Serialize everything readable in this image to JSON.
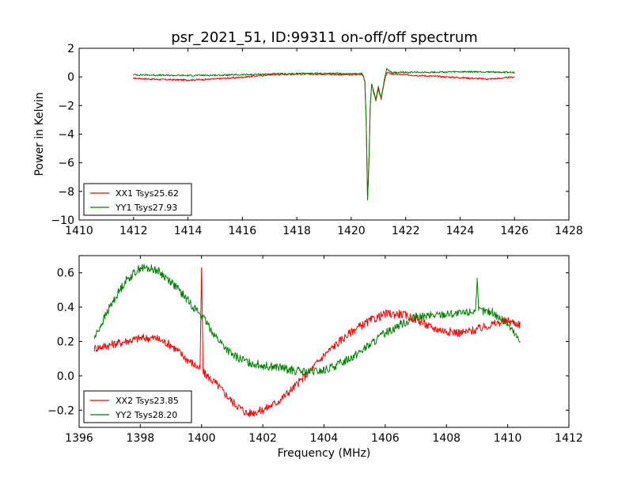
{
  "figure": {
    "title": "psr_2021_51, ID:99311 on-off/off spectrum"
  },
  "chart_data": [
    {
      "type": "line",
      "title": "psr_2021_51, ID:99311 on-off/off spectrum",
      "xlabel": "",
      "ylabel": "Power in Kelvin",
      "xlim": [
        1410,
        1428
      ],
      "ylim": [
        -10,
        2
      ],
      "xticks": [
        1410,
        1412,
        1414,
        1416,
        1418,
        1420,
        1422,
        1424,
        1426,
        1428
      ],
      "yticks": [
        -10,
        -8,
        -6,
        -4,
        -2,
        0,
        2
      ],
      "grid": false,
      "legend": "lower-left",
      "series": [
        {
          "name": "XX1 Tsys25.62",
          "color": "#ff0000",
          "x": [
            1412.0,
            1413.0,
            1414.0,
            1415.0,
            1416.0,
            1417.0,
            1418.0,
            1419.0,
            1420.0,
            1420.4,
            1420.5,
            1420.55,
            1420.6,
            1420.65,
            1420.7,
            1420.75,
            1420.8,
            1420.9,
            1421.0,
            1421.1,
            1421.2,
            1421.3,
            1421.5,
            1422.0,
            1423.0,
            1424.0,
            1425.0,
            1425.5,
            1426.0
          ],
          "y": [
            -0.1,
            -0.18,
            -0.22,
            -0.15,
            -0.02,
            0.15,
            0.2,
            0.2,
            0.15,
            0.2,
            -0.3,
            -3.0,
            -8.5,
            -6.0,
            -2.0,
            -0.6,
            -0.9,
            -1.7,
            -0.8,
            -1.6,
            -0.5,
            0.3,
            0.2,
            0.15,
            0.05,
            -0.05,
            -0.15,
            -0.1,
            0.0
          ]
        },
        {
          "name": "YY1 Tsys27.93",
          "color": "#008000",
          "x": [
            1412.0,
            1413.0,
            1414.0,
            1415.0,
            1416.0,
            1417.0,
            1418.0,
            1419.0,
            1420.0,
            1420.4,
            1420.5,
            1420.55,
            1420.6,
            1420.65,
            1420.7,
            1420.75,
            1420.8,
            1420.9,
            1421.0,
            1421.1,
            1421.2,
            1421.3,
            1421.5,
            1422.0,
            1423.0,
            1424.0,
            1425.0,
            1425.5,
            1426.0
          ],
          "y": [
            0.15,
            0.12,
            0.1,
            0.12,
            0.15,
            0.2,
            0.22,
            0.25,
            0.22,
            0.25,
            -0.3,
            -3.0,
            -8.6,
            -6.0,
            -2.0,
            -0.5,
            -0.8,
            -1.6,
            -0.7,
            -1.5,
            -0.4,
            0.6,
            0.3,
            0.32,
            0.33,
            0.35,
            0.35,
            0.33,
            0.3
          ]
        }
      ]
    },
    {
      "type": "line",
      "title": "",
      "xlabel": "Frequency (MHz)",
      "ylabel": "",
      "xlim": [
        1396,
        1412
      ],
      "ylim": [
        -0.3,
        0.7
      ],
      "xticks": [
        1396,
        1398,
        1400,
        1402,
        1404,
        1406,
        1408,
        1410,
        1412
      ],
      "yticks": [
        -0.2,
        0.0,
        0.2,
        0.4,
        0.6
      ],
      "grid": false,
      "legend": "lower-left",
      "series": [
        {
          "name": "XX2 Tsys23.85",
          "color": "#ff0000",
          "x": [
            1396.5,
            1397.0,
            1397.5,
            1398.0,
            1398.5,
            1399.0,
            1399.5,
            1399.95,
            1400.0,
            1400.05,
            1400.5,
            1401.0,
            1401.5,
            1402.0,
            1402.5,
            1403.0,
            1403.5,
            1404.0,
            1404.5,
            1405.0,
            1405.5,
            1406.0,
            1406.5,
            1407.0,
            1407.5,
            1408.0,
            1408.5,
            1409.0,
            1409.5,
            1410.0,
            1410.4
          ],
          "y": [
            0.16,
            0.18,
            0.2,
            0.22,
            0.22,
            0.18,
            0.1,
            0.04,
            0.63,
            0.02,
            -0.05,
            -0.15,
            -0.22,
            -0.2,
            -0.15,
            -0.07,
            0.02,
            0.12,
            0.2,
            0.27,
            0.32,
            0.36,
            0.36,
            0.33,
            0.28,
            0.26,
            0.25,
            0.27,
            0.3,
            0.32,
            0.3
          ]
        },
        {
          "name": "YY2 Tsys28.20",
          "color": "#008000",
          "x": [
            1396.5,
            1397.0,
            1397.5,
            1398.0,
            1398.5,
            1399.0,
            1399.5,
            1400.0,
            1400.5,
            1401.0,
            1401.5,
            1402.0,
            1402.5,
            1403.0,
            1403.5,
            1404.0,
            1404.5,
            1405.0,
            1405.5,
            1406.0,
            1406.5,
            1407.0,
            1407.5,
            1408.0,
            1408.5,
            1408.95,
            1409.0,
            1409.05,
            1409.5,
            1410.0,
            1410.4
          ],
          "y": [
            0.22,
            0.4,
            0.55,
            0.63,
            0.62,
            0.55,
            0.45,
            0.35,
            0.22,
            0.12,
            0.08,
            0.06,
            0.05,
            0.03,
            0.02,
            0.03,
            0.07,
            0.12,
            0.18,
            0.25,
            0.3,
            0.34,
            0.35,
            0.36,
            0.36,
            0.38,
            0.57,
            0.38,
            0.37,
            0.3,
            0.2
          ]
        }
      ]
    }
  ]
}
